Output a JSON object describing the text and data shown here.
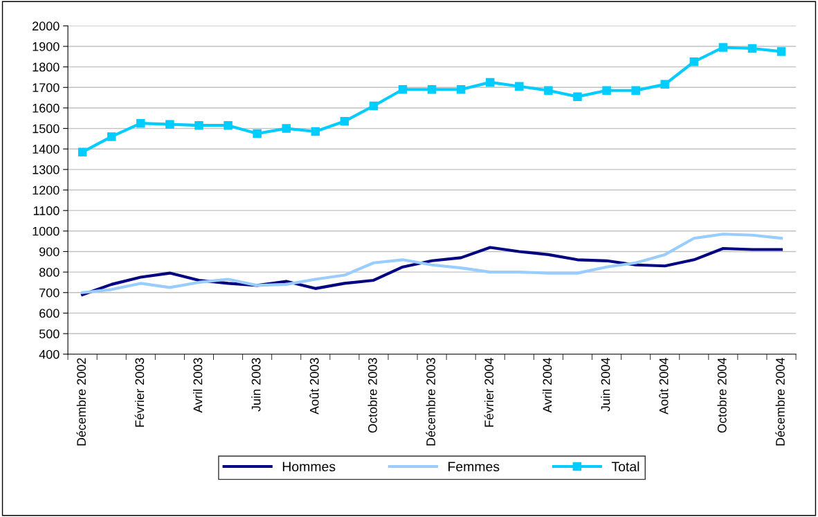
{
  "chart_data": {
    "type": "line",
    "categories": [
      "Décembre 2002",
      null,
      "Février 2003",
      null,
      "Avril 2003",
      null,
      "Juin 2003",
      null,
      "Août 2003",
      null,
      "Octobre 2003",
      null,
      "Décembre 2003",
      null,
      "Février 2004",
      null,
      "Avril 2004",
      null,
      "Juin 2004",
      null,
      "Août 2004",
      null,
      "Octobre 2004",
      null,
      "Décembre 2004"
    ],
    "series": [
      {
        "name": "Hommes",
        "color": "#000080",
        "marker": "none",
        "values": [
          690,
          740,
          775,
          795,
          760,
          745,
          735,
          755,
          720,
          745,
          760,
          825,
          855,
          870,
          920,
          900,
          885,
          860,
          855,
          835,
          830,
          860,
          915,
          910,
          910
        ]
      },
      {
        "name": "Femmes",
        "color": "#99ccff",
        "marker": "none",
        "values": [
          700,
          715,
          745,
          725,
          750,
          765,
          735,
          740,
          765,
          785,
          845,
          860,
          835,
          820,
          800,
          800,
          795,
          795,
          825,
          845,
          885,
          965,
          985,
          980,
          965
        ]
      },
      {
        "name": "Total",
        "color": "#00ccff",
        "marker": "square",
        "values": [
          1385,
          1460,
          1525,
          1520,
          1515,
          1515,
          1475,
          1500,
          1485,
          1535,
          1610,
          1690,
          1690,
          1690,
          1725,
          1705,
          1685,
          1655,
          1685,
          1685,
          1715,
          1825,
          1895,
          1890,
          1875
        ]
      }
    ],
    "ylim": [
      400,
      2000
    ],
    "yticks": [
      400,
      500,
      600,
      700,
      800,
      900,
      1000,
      1100,
      1200,
      1300,
      1400,
      1500,
      1600,
      1700,
      1800,
      1900,
      2000
    ],
    "grid": "y",
    "legend": "bottom",
    "line_style": "solid"
  }
}
